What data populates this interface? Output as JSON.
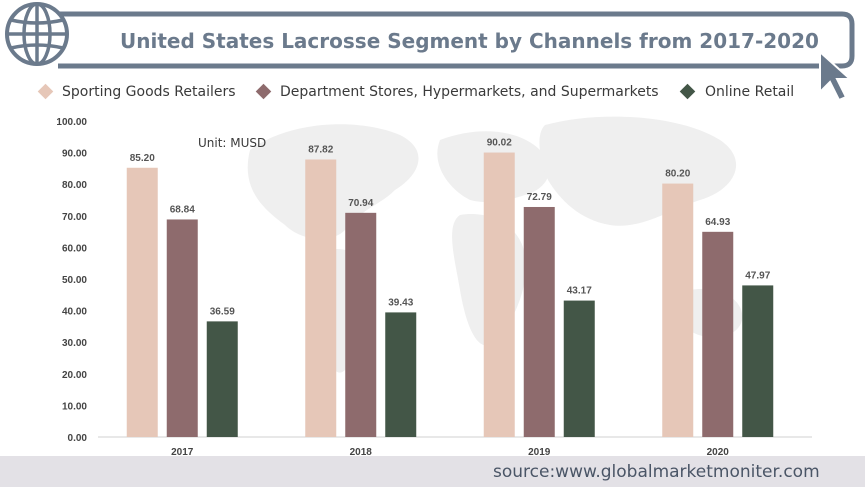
{
  "title": "United States Lacrosse Segment by Channels from 2017-2020",
  "unit_label": "Unit:  MUSD",
  "source": "source:www.globalmarketmoniter.com",
  "colors": {
    "title": "#6b7a8c",
    "frame": "#6b7a8c",
    "footer_band": "#e3e1e6",
    "map": "#eeeeee"
  },
  "icons": {
    "logo": "globe-icon",
    "cursor": "cursor-arrow-icon"
  },
  "chart_data": {
    "type": "bar",
    "categories": [
      "2017",
      "2018",
      "2019",
      "2020"
    ],
    "series": [
      {
        "name": "Sporting Goods Retailers",
        "color": "#e6c7b8",
        "values": [
          85.2,
          87.82,
          90.02,
          80.2
        ],
        "labels": [
          "85.20",
          "87.82",
          "90.02",
          "80.20"
        ]
      },
      {
        "name": "Department Stores, Hypermarkets, and Supermarkets",
        "color": "#8e6b6d",
        "values": [
          68.84,
          70.94,
          72.79,
          64.93
        ],
        "labels": [
          "68.84",
          "70.94",
          "72.79",
          "64.93"
        ]
      },
      {
        "name": "Online Retail",
        "color": "#435647",
        "values": [
          36.59,
          39.43,
          43.17,
          47.97
        ],
        "labels": [
          "36.59",
          "39.43",
          "43.17",
          "47.97"
        ]
      }
    ],
    "ylim": [
      0,
      100
    ],
    "yticks": [
      "0.00",
      "10.00",
      "20.00",
      "30.00",
      "40.00",
      "50.00",
      "60.00",
      "70.00",
      "80.00",
      "90.00",
      "100.00"
    ],
    "legend_position": "top",
    "grid": false,
    "xlabel": "",
    "ylabel": ""
  }
}
